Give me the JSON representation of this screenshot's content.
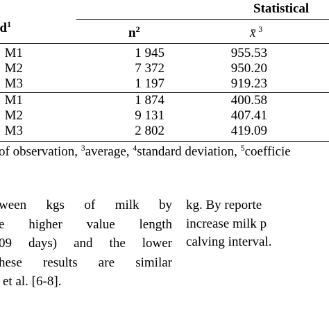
{
  "table": {
    "header": {
      "method": {
        "text": "od",
        "sup": "1"
      },
      "group": "Statistical",
      "columns": [
        {
          "text": "n",
          "sup": "2"
        },
        {
          "text": "x̄",
          "sup": "3"
        }
      ]
    },
    "rows": [
      [
        "M1",
        "1 945",
        "955.53"
      ],
      [
        "M2",
        "7 372",
        "950.20"
      ],
      [
        "M3",
        "1 197",
        "919.23"
      ],
      [
        "M1",
        "1 874",
        "400.58"
      ],
      [
        "M2",
        "9 131",
        "407.41"
      ],
      [
        "M3",
        "2 802",
        "419.09"
      ]
    ],
    "footnote": [
      {
        "text": "of observation, "
      },
      {
        "sup": "3"
      },
      {
        "text": "average, "
      },
      {
        "sup": "4"
      },
      {
        "text": "standard deviation, "
      },
      {
        "sup": "5"
      },
      {
        "text": "coefficie"
      }
    ]
  },
  "body": {
    "left": [
      "ween kgs of milk by",
      "e higher value length",
      "09 days) and the lower",
      "hese results are similar",
      "et al. [6-8]."
    ],
    "right": [
      "kg. By reporte",
      "increase milk p",
      "calving interval."
    ]
  }
}
